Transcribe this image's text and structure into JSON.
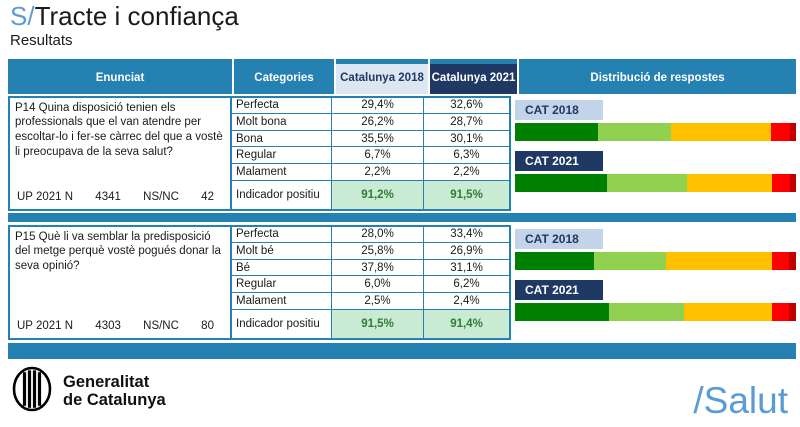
{
  "title": {
    "brand_prefix": "S/",
    "main": "Tracte i confiança",
    "subtitle": "Resultats"
  },
  "colors": {
    "teal": "#2581B2",
    "navy": "#1F3864",
    "header_light_bg": "#DCE7F3",
    "badge_2018_bg": "#C3D4E9",
    "indicator_bg": "#C9EBD3",
    "indicator_text": "#2E7D32",
    "brand_blue": "#5B9BD5"
  },
  "table": {
    "headers": {
      "enunciat": "Enunciat",
      "categories": "Categories",
      "catalunya_2018": "Catalunya 2018",
      "catalunya_2021": "Catalunya 2021",
      "distribucio": "Distribució de respostes"
    }
  },
  "questions": [
    {
      "text": "P14 Quina disposició tenien els professionals que el van atendre per escoltar-lo i fer-se càrrec del que a vostè li preocupava de la seva salut?",
      "meta": {
        "up_label": "UP 2021 N",
        "up_value": "4341",
        "nsnc_label": "NS/NC",
        "nsnc_value": "42"
      },
      "rows": [
        {
          "label": "Perfecta",
          "v2018": "29,4%",
          "v2021": "32,6%"
        },
        {
          "label": "Molt bona",
          "v2018": "26,2%",
          "v2021": "28,7%"
        },
        {
          "label": "Bona",
          "v2018": "35,5%",
          "v2021": "30,1%"
        },
        {
          "label": "Regular",
          "v2018": "6,7%",
          "v2021": "6,3%"
        },
        {
          "label": "Malament",
          "v2018": "2,2%",
          "v2021": "2,2%"
        }
      ],
      "indicator": {
        "label": "Indicador positiu",
        "v2018": "91,2%",
        "v2021": "91,5%"
      }
    },
    {
      "text": "P15 Què li va semblar la predisposició del metge perquè vostè pogués donar la seva opinió?",
      "meta": {
        "up_label": "UP 2021 N",
        "up_value": "4303",
        "nsnc_label": "NS/NC",
        "nsnc_value": "80"
      },
      "rows": [
        {
          "label": "Perfecta",
          "v2018": "28,0%",
          "v2021": "33,4%"
        },
        {
          "label": "Molt bé",
          "v2018": "25,8%",
          "v2021": "26,9%"
        },
        {
          "label": "Bé",
          "v2018": "37,8%",
          "v2021": "31,1%"
        },
        {
          "label": "Regular",
          "v2018": "6,0%",
          "v2021": "6,2%"
        },
        {
          "label": "Malament",
          "v2018": "2,5%",
          "v2021": "2,4%"
        }
      ],
      "indicator": {
        "label": "Indicador positiu",
        "v2018": "91,5%",
        "v2021": "91,4%"
      }
    }
  ],
  "chart_data": [
    {
      "type": "bar",
      "stacked": true,
      "orientation": "horizontal",
      "unit": "%",
      "title": "P14 Distribució de respostes",
      "categories": [
        "CAT 2018",
        "CAT 2021"
      ],
      "series": [
        {
          "name": "Perfecta",
          "values": [
            29.4,
            32.6
          ],
          "color": "#008000"
        },
        {
          "name": "Molt bona",
          "values": [
            26.2,
            28.7
          ],
          "color": "#92D050"
        },
        {
          "name": "Bona",
          "values": [
            35.5,
            30.1
          ],
          "color": "#FFC000"
        },
        {
          "name": "Regular",
          "values": [
            6.7,
            6.3
          ],
          "color": "#FF0000"
        },
        {
          "name": "Malament",
          "values": [
            2.2,
            2.2
          ],
          "color": "#C00000"
        }
      ],
      "xlim": [
        0,
        100
      ],
      "grid": false,
      "legend": false
    },
    {
      "type": "bar",
      "stacked": true,
      "orientation": "horizontal",
      "unit": "%",
      "title": "P15 Distribució de respostes",
      "categories": [
        "CAT 2018",
        "CAT 2021"
      ],
      "series": [
        {
          "name": "Perfecta",
          "values": [
            28.0,
            33.4
          ],
          "color": "#008000"
        },
        {
          "name": "Molt bé",
          "values": [
            25.8,
            26.9
          ],
          "color": "#92D050"
        },
        {
          "name": "Bé",
          "values": [
            37.8,
            31.1
          ],
          "color": "#FFC000"
        },
        {
          "name": "Regular",
          "values": [
            6.0,
            6.2
          ],
          "color": "#FF0000"
        },
        {
          "name": "Malament",
          "values": [
            2.5,
            2.4
          ],
          "color": "#C00000"
        }
      ],
      "xlim": [
        0,
        100
      ],
      "grid": false,
      "legend": false
    }
  ],
  "footer": {
    "gencat_line1": "Generalitat",
    "gencat_line2": "de Catalunya",
    "salut_logo": "/Salut"
  }
}
